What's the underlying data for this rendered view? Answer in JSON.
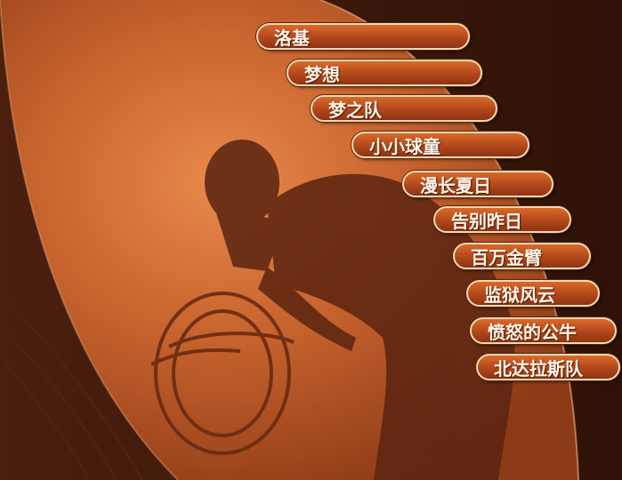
{
  "menu": {
    "items": [
      {
        "label": "洛基"
      },
      {
        "label": "梦想"
      },
      {
        "label": "梦之队"
      },
      {
        "label": "小小球童"
      },
      {
        "label": "漫长夏日"
      },
      {
        "label": "告别昨日"
      },
      {
        "label": "百万金臂"
      },
      {
        "label": "监狱风云"
      },
      {
        "label": "愤怒的公牛"
      },
      {
        "label": "北达拉斯队"
      }
    ]
  },
  "colors": {
    "background_dark": "#3d1a0c",
    "panel_orange": "#c8642e",
    "button_orange": "#b2471a",
    "button_border": "#f2d9b3",
    "silhouette": "#5a2410"
  }
}
